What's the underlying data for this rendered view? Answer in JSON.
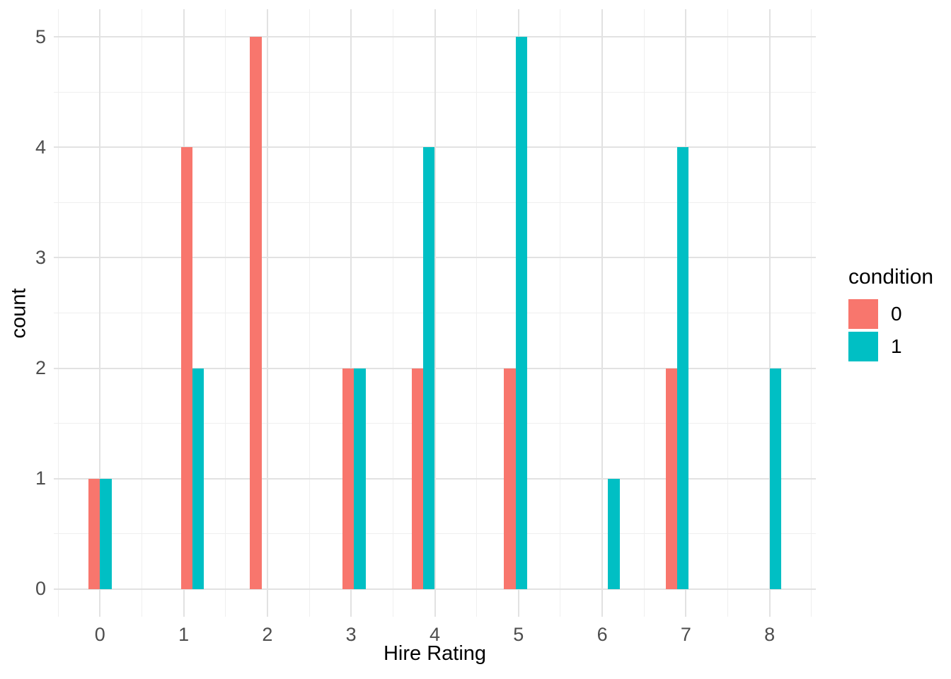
{
  "chart_data": {
    "type": "bar",
    "subtype": "dodged-histogram",
    "title": "",
    "xlabel": "Hire Rating",
    "ylabel": "count",
    "legend_title": "condition",
    "legend_position": "right",
    "categories": [
      0,
      1,
      2,
      3,
      4,
      5,
      6,
      7,
      8
    ],
    "series": [
      {
        "name": "0",
        "color": "#F8766D",
        "values": [
          1,
          4,
          5,
          2,
          2,
          2,
          0,
          2,
          0
        ]
      },
      {
        "name": "1",
        "color": "#00BFC4",
        "values": [
          1,
          2,
          0,
          2,
          4,
          5,
          1,
          4,
          2
        ]
      }
    ],
    "bin_centers": [
      0,
      1.1034,
      1.931,
      3.0345,
      3.8621,
      4.9655,
      6.069,
      6.8966,
      8
    ],
    "bar_half_width": 0.1379,
    "x_ticks": [
      "0",
      "1",
      "2",
      "3",
      "4",
      "5",
      "6",
      "7",
      "8"
    ],
    "x_tick_values": [
      0,
      1,
      2,
      3,
      4,
      5,
      6,
      7,
      8
    ],
    "y_ticks": [
      "0",
      "1",
      "2",
      "3",
      "4",
      "5"
    ],
    "y_tick_values": [
      0,
      1,
      2,
      3,
      4,
      5
    ],
    "x_minor": [
      -0.5,
      0.5,
      1.5,
      2.5,
      3.5,
      4.5,
      5.5,
      6.5,
      7.5,
      8.5
    ],
    "y_minor": [
      0.5,
      1.5,
      2.5,
      3.5,
      4.5
    ],
    "x_domain": [
      -0.552,
      8.552
    ],
    "y_domain": [
      -0.25,
      5.25
    ],
    "ylim": [
      0,
      5
    ],
    "grid": true,
    "colors": {
      "grid_major": "#E2E2E2",
      "grid_minor": "#EFEFEF",
      "tick_text": "#4D4D4D",
      "title_text": "#000000",
      "background": "#FFFFFF"
    }
  }
}
